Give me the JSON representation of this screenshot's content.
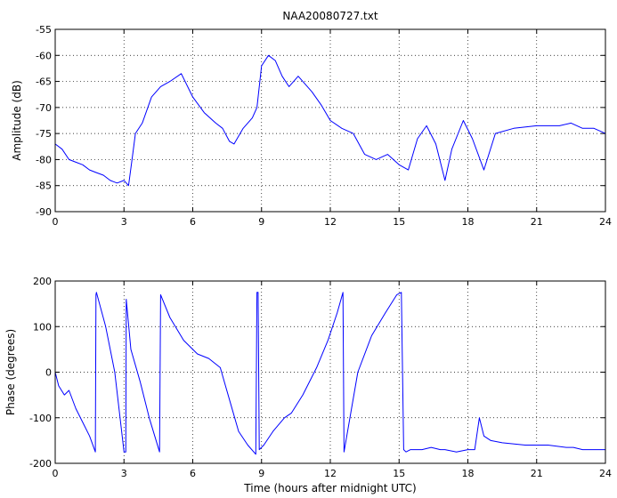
{
  "chart_data": [
    {
      "type": "line",
      "title": "NAA20080727.txt",
      "xlabel": "",
      "ylabel": "Amplitude (dB)",
      "xlim": [
        0,
        24
      ],
      "ylim": [
        -90,
        -55
      ],
      "xticks": [
        "0",
        "3",
        "6",
        "9",
        "12",
        "15",
        "18",
        "21",
        "24"
      ],
      "yticks": [
        "-55",
        "-60",
        "-65",
        "-70",
        "-75",
        "-80",
        "-85",
        "-90"
      ],
      "grid": true,
      "series_color": "#0000ff",
      "x": [
        0,
        0.3,
        0.6,
        0.9,
        1.2,
        1.5,
        1.8,
        2.1,
        2.4,
        2.7,
        3.0,
        3.2,
        3.35,
        3.5,
        3.8,
        4.2,
        4.6,
        5.0,
        5.5,
        6.0,
        6.5,
        7.0,
        7.3,
        7.6,
        7.8,
        8.2,
        8.6,
        8.8,
        9.0,
        9.3,
        9.6,
        9.9,
        10.2,
        10.4,
        10.6,
        10.8,
        11.2,
        11.6,
        12.0,
        12.5,
        13.0,
        13.5,
        14.0,
        14.5,
        15.0,
        15.4,
        15.8,
        16.2,
        16.6,
        17.0,
        17.3,
        17.8,
        18.2,
        18.7,
        19.2,
        20.0,
        21.0,
        22.0,
        22.5,
        23.0,
        23.5,
        24.0
      ],
      "values": [
        -77,
        -78,
        -80,
        -80.5,
        -81,
        -82,
        -82.5,
        -83,
        -84,
        -84.5,
        -84,
        -85,
        -80,
        -75,
        -73,
        -68,
        -66,
        -65,
        -63.5,
        -68,
        -71,
        -73,
        -74,
        -76.5,
        -77,
        -74,
        -72,
        -70,
        -62,
        -60,
        -61,
        -64,
        -66,
        -65,
        -64,
        -65,
        -67,
        -69.5,
        -72.5,
        -74,
        -75,
        -79,
        -80,
        -79,
        -81,
        -82,
        -76,
        -73.5,
        -77,
        -84,
        -78,
        -72.5,
        -76,
        -82,
        -75,
        -74,
        -73.5,
        -73.5,
        -73,
        -74,
        -74,
        -75
      ]
    },
    {
      "type": "line",
      "title": "",
      "xlabel": "Time (hours after midnight UTC)",
      "ylabel": "Phase (degrees)",
      "xlim": [
        0,
        24
      ],
      "ylim": [
        -200,
        200
      ],
      "xticks": [
        "0",
        "3",
        "6",
        "9",
        "12",
        "15",
        "18",
        "21",
        "24"
      ],
      "yticks": [
        "200",
        "100",
        "0",
        "-100",
        "-200"
      ],
      "grid": true,
      "series_color": "#0000ff",
      "x": [
        0,
        0.15,
        0.4,
        0.6,
        0.9,
        1.2,
        1.5,
        1.75,
        1.78,
        1.8,
        2.2,
        2.6,
        3.0,
        3.08,
        3.1,
        3.3,
        3.7,
        4.1,
        4.55,
        4.6,
        5.0,
        5.6,
        6.2,
        6.7,
        7.2,
        7.6,
        8.0,
        8.4,
        8.75,
        8.8,
        8.85,
        8.9,
        9.1,
        9.5,
        10.0,
        10.3,
        10.8,
        11.4,
        11.9,
        12.3,
        12.55,
        12.6,
        13.2,
        13.8,
        14.4,
        14.9,
        15.1,
        15.2,
        15.3,
        15.5,
        16.0,
        16.4,
        16.8,
        17.0,
        17.5,
        18.0,
        18.3,
        18.5,
        18.7,
        19.0,
        19.5,
        20.5,
        21.5,
        22.3,
        22.6,
        23.0,
        23.5,
        24.0
      ],
      "values": [
        0,
        -30,
        -50,
        -40,
        -80,
        -110,
        -140,
        -175,
        170,
        175,
        100,
        0,
        -175,
        -175,
        160,
        50,
        -20,
        -100,
        -175,
        170,
        120,
        70,
        40,
        30,
        10,
        -60,
        -130,
        -160,
        -180,
        175,
        175,
        -170,
        -160,
        -130,
        -100,
        -90,
        -50,
        10,
        70,
        130,
        175,
        -175,
        0,
        80,
        130,
        170,
        175,
        -170,
        -175,
        -170,
        -170,
        -165,
        -170,
        -170,
        -175,
        -170,
        -170,
        -100,
        -140,
        -150,
        -155,
        -160,
        -160,
        -165,
        -165,
        -170,
        -170,
        -170
      ]
    }
  ]
}
